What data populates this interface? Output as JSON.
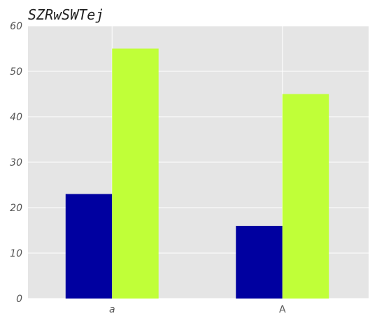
{
  "chart_data": {
    "type": "bar",
    "title": "SZRwSWTej",
    "xlabel": "",
    "ylabel": "",
    "categories": [
      "a",
      "A"
    ],
    "category_italic": [
      true,
      false
    ],
    "series": [
      {
        "values": [
          23,
          16
        ],
        "color": "#0000a0"
      },
      {
        "values": [
          55,
          45
        ],
        "color": "#c0ff38"
      }
    ],
    "ylim": [
      0,
      60
    ],
    "yticks": [
      0,
      10,
      20,
      30,
      40,
      50,
      60
    ],
    "grid": true,
    "background": "#e5e5e5",
    "gridcolor": "#ffffff"
  }
}
